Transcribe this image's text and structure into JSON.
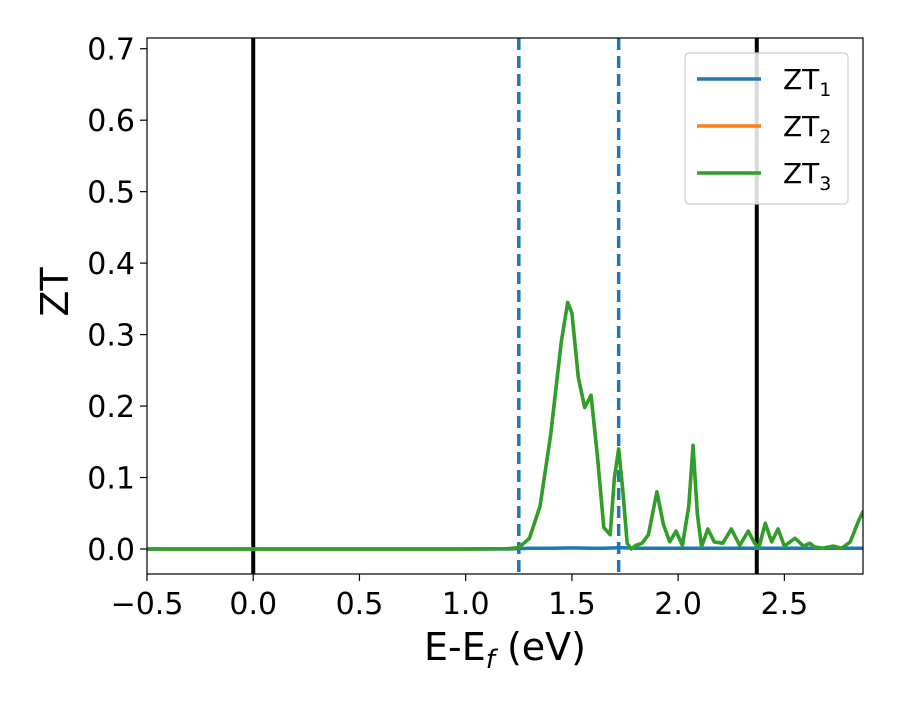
{
  "chart_data": {
    "type": "line",
    "xlabel": {
      "main": "E-E",
      "sub": "f",
      "tail": " (eV)"
    },
    "ylabel": "ZT",
    "xlim": [
      -0.5,
      2.87
    ],
    "ylim": [
      -0.035,
      0.715
    ],
    "x_ticks": [
      -0.5,
      0.0,
      0.5,
      1.0,
      1.5,
      2.0,
      2.5
    ],
    "x_tick_labels": [
      "−0.5",
      "0.0",
      "0.5",
      "1.0",
      "1.5",
      "2.0",
      "2.5"
    ],
    "y_ticks": [
      0.0,
      0.1,
      0.2,
      0.3,
      0.4,
      0.5,
      0.6,
      0.7
    ],
    "y_tick_labels": [
      "0.0",
      "0.1",
      "0.2",
      "0.3",
      "0.4",
      "0.5",
      "0.6",
      "0.7"
    ],
    "grid": false,
    "legend_position": "top-right",
    "vertical_lines": [
      {
        "x": 0.0,
        "style": "solid",
        "color": "#000000"
      },
      {
        "x": 2.37,
        "style": "solid",
        "color": "#000000"
      },
      {
        "x": 1.25,
        "style": "dashed",
        "color": "#1f77b4"
      },
      {
        "x": 1.72,
        "style": "dashed",
        "color": "#1f77b4"
      }
    ],
    "series": [
      {
        "name": {
          "main": "ZT",
          "sub": "1"
        },
        "color": "#1f77b4",
        "x": [
          -0.5,
          0.0,
          0.5,
          1.0,
          1.2,
          1.25,
          1.3,
          1.4,
          1.5,
          1.6,
          1.65,
          1.7,
          1.72,
          1.75,
          1.8,
          2.0,
          2.2,
          2.37,
          2.5,
          2.7,
          2.87
        ],
        "y": [
          0.0,
          0.0,
          0.0,
          0.0,
          0.0,
          0.0005,
          0.001,
          0.001,
          0.0015,
          0.001,
          0.001,
          0.0015,
          0.002,
          0.0015,
          0.001,
          0.001,
          0.001,
          0.001,
          0.001,
          0.001,
          0.001
        ]
      },
      {
        "name": {
          "main": "ZT",
          "sub": "2"
        },
        "color": "#ff7f0e",
        "x": [
          -0.5,
          0.0,
          0.5,
          1.0,
          1.2,
          1.25,
          1.3,
          1.35,
          1.4,
          1.45,
          1.48,
          1.5,
          1.53,
          1.56,
          1.59,
          1.62,
          1.65,
          1.68,
          1.7,
          1.72,
          1.74,
          1.76,
          1.78,
          1.8,
          1.83,
          1.86,
          1.9,
          1.93,
          1.96,
          1.99,
          2.02,
          2.05,
          2.07,
          2.09,
          2.11,
          2.14,
          2.17,
          2.21,
          2.25,
          2.29,
          2.33,
          2.36,
          2.38,
          2.41,
          2.44,
          2.47,
          2.5,
          2.55,
          2.59,
          2.62,
          2.64,
          2.68,
          2.73,
          2.77,
          2.81,
          2.85,
          2.87
        ],
        "y": [
          0.0,
          0.0,
          0.0,
          0.0,
          0.0005,
          0.002,
          0.015,
          0.06,
          0.16,
          0.29,
          0.345,
          0.33,
          0.24,
          0.198,
          0.215,
          0.13,
          0.03,
          0.02,
          0.1,
          0.14,
          0.08,
          0.008,
          0.0,
          0.005,
          0.008,
          0.02,
          0.08,
          0.035,
          0.01,
          0.025,
          0.005,
          0.06,
          0.145,
          0.05,
          0.003,
          0.028,
          0.01,
          0.008,
          0.028,
          0.005,
          0.025,
          0.008,
          0.002,
          0.036,
          0.01,
          0.028,
          0.004,
          0.015,
          0.004,
          0.008,
          0.003,
          0.001,
          0.004,
          0.001,
          0.01,
          0.04,
          0.052
        ]
      },
      {
        "name": {
          "main": "ZT",
          "sub": "3"
        },
        "color": "#2ca02c",
        "x": [
          -0.5,
          0.0,
          0.5,
          1.0,
          1.2,
          1.25,
          1.3,
          1.35,
          1.4,
          1.45,
          1.48,
          1.5,
          1.53,
          1.56,
          1.59,
          1.62,
          1.65,
          1.68,
          1.7,
          1.72,
          1.74,
          1.76,
          1.78,
          1.8,
          1.83,
          1.86,
          1.9,
          1.93,
          1.96,
          1.99,
          2.02,
          2.05,
          2.07,
          2.09,
          2.11,
          2.14,
          2.17,
          2.21,
          2.25,
          2.29,
          2.33,
          2.36,
          2.38,
          2.41,
          2.44,
          2.47,
          2.5,
          2.55,
          2.59,
          2.62,
          2.64,
          2.68,
          2.73,
          2.77,
          2.81,
          2.85,
          2.87
        ],
        "y": [
          0.0,
          0.0,
          0.0,
          0.0,
          0.0005,
          0.002,
          0.015,
          0.06,
          0.16,
          0.29,
          0.345,
          0.33,
          0.24,
          0.198,
          0.215,
          0.13,
          0.03,
          0.02,
          0.1,
          0.14,
          0.08,
          0.008,
          0.0,
          0.005,
          0.008,
          0.02,
          0.08,
          0.035,
          0.01,
          0.025,
          0.005,
          0.06,
          0.145,
          0.05,
          0.003,
          0.028,
          0.01,
          0.008,
          0.028,
          0.005,
          0.025,
          0.008,
          0.002,
          0.036,
          0.01,
          0.028,
          0.004,
          0.015,
          0.004,
          0.008,
          0.003,
          0.001,
          0.004,
          0.001,
          0.01,
          0.04,
          0.052
        ]
      }
    ]
  }
}
